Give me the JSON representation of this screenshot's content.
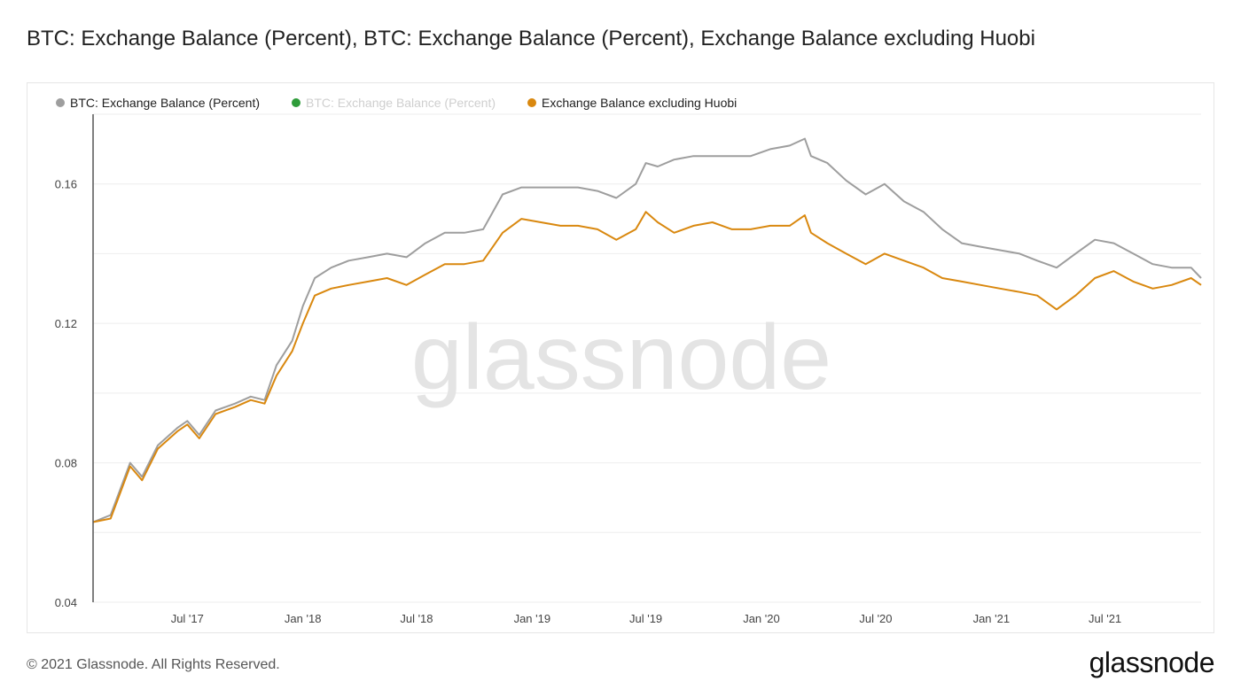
{
  "title": "BTC: Exchange Balance (Percent), BTC: Exchange Balance (Percent), Exchange Balance excluding Huobi",
  "footer": {
    "copyright": "© 2021 Glassnode. All Rights Reserved.",
    "logo": "glassnode"
  },
  "watermark": "glassnode",
  "colors": {
    "grey_series": "#9e9e9e",
    "green_series": "#2e9c3a",
    "orange_series": "#d9880f",
    "grid": "#eeeeee",
    "axis": "#555555"
  },
  "legend": [
    {
      "label": "BTC: Exchange Balance (Percent)",
      "color": "#9e9e9e",
      "hidden": false
    },
    {
      "label": "BTC: Exchange Balance (Percent)",
      "color": "#2e9c3a",
      "hidden": true
    },
    {
      "label": "Exchange Balance excluding Huobi",
      "color": "#d9880f",
      "hidden": false
    }
  ],
  "chart_data": {
    "type": "line",
    "title": "BTC: Exchange Balance (Percent), BTC: Exchange Balance (Percent), Exchange Balance excluding Huobi",
    "xlabel": "",
    "ylabel": "",
    "x_ticks": [
      "Jul '17",
      "Jan '18",
      "Jul '18",
      "Jan '19",
      "Jul '19",
      "Jan '20",
      "Jul '20",
      "Jan '21",
      "Jul '21"
    ],
    "y_ticks": [
      "0.04",
      "0.08",
      "0.12",
      "0.16"
    ],
    "ylim": [
      0.04,
      0.18
    ],
    "xlim": [
      "2017-02-01",
      "2021-12-01"
    ],
    "grid": true,
    "legend_position": "top-left",
    "series": [
      {
        "name": "BTC: Exchange Balance (Percent)",
        "color": "#9e9e9e",
        "points": [
          [
            "2017-02-01",
            0.063
          ],
          [
            "2017-03-01",
            0.065
          ],
          [
            "2017-04-01",
            0.08
          ],
          [
            "2017-04-20",
            0.076
          ],
          [
            "2017-05-15",
            0.085
          ],
          [
            "2017-06-15",
            0.09
          ],
          [
            "2017-07-01",
            0.092
          ],
          [
            "2017-07-20",
            0.088
          ],
          [
            "2017-08-15",
            0.095
          ],
          [
            "2017-09-15",
            0.097
          ],
          [
            "2017-10-10",
            0.099
          ],
          [
            "2017-11-01",
            0.098
          ],
          [
            "2017-11-20",
            0.108
          ],
          [
            "2017-12-15",
            0.115
          ],
          [
            "2018-01-01",
            0.125
          ],
          [
            "2018-01-20",
            0.133
          ],
          [
            "2018-02-15",
            0.136
          ],
          [
            "2018-03-15",
            0.138
          ],
          [
            "2018-04-15",
            0.139
          ],
          [
            "2018-05-15",
            0.14
          ],
          [
            "2018-06-15",
            0.139
          ],
          [
            "2018-07-15",
            0.143
          ],
          [
            "2018-08-15",
            0.146
          ],
          [
            "2018-09-15",
            0.146
          ],
          [
            "2018-10-15",
            0.147
          ],
          [
            "2018-11-15",
            0.157
          ],
          [
            "2018-12-15",
            0.159
          ],
          [
            "2019-01-15",
            0.159
          ],
          [
            "2019-02-15",
            0.159
          ],
          [
            "2019-03-15",
            0.159
          ],
          [
            "2019-04-15",
            0.158
          ],
          [
            "2019-05-15",
            0.156
          ],
          [
            "2019-06-15",
            0.16
          ],
          [
            "2019-07-01",
            0.166
          ],
          [
            "2019-07-20",
            0.165
          ],
          [
            "2019-08-15",
            0.167
          ],
          [
            "2019-09-15",
            0.168
          ],
          [
            "2019-10-15",
            0.168
          ],
          [
            "2019-11-15",
            0.168
          ],
          [
            "2019-12-15",
            0.168
          ],
          [
            "2020-01-15",
            0.17
          ],
          [
            "2020-02-15",
            0.171
          ],
          [
            "2020-03-10",
            0.173
          ],
          [
            "2020-03-20",
            0.168
          ],
          [
            "2020-04-15",
            0.166
          ],
          [
            "2020-05-15",
            0.161
          ],
          [
            "2020-06-15",
            0.157
          ],
          [
            "2020-07-15",
            0.16
          ],
          [
            "2020-08-15",
            0.155
          ],
          [
            "2020-09-15",
            0.152
          ],
          [
            "2020-10-15",
            0.147
          ],
          [
            "2020-11-15",
            0.143
          ],
          [
            "2020-12-15",
            0.142
          ],
          [
            "2021-01-15",
            0.141
          ],
          [
            "2021-02-15",
            0.14
          ],
          [
            "2021-03-15",
            0.138
          ],
          [
            "2021-04-15",
            0.136
          ],
          [
            "2021-05-15",
            0.14
          ],
          [
            "2021-06-15",
            0.144
          ],
          [
            "2021-07-15",
            0.143
          ],
          [
            "2021-08-15",
            0.14
          ],
          [
            "2021-09-15",
            0.137
          ],
          [
            "2021-10-15",
            0.136
          ],
          [
            "2021-11-15",
            0.136
          ],
          [
            "2021-12-01",
            0.133
          ]
        ]
      },
      {
        "name": "Exchange Balance excluding Huobi",
        "color": "#d9880f",
        "points": [
          [
            "2017-02-01",
            0.063
          ],
          [
            "2017-03-01",
            0.064
          ],
          [
            "2017-04-01",
            0.079
          ],
          [
            "2017-04-20",
            0.075
          ],
          [
            "2017-05-15",
            0.084
          ],
          [
            "2017-06-15",
            0.089
          ],
          [
            "2017-07-01",
            0.091
          ],
          [
            "2017-07-20",
            0.087
          ],
          [
            "2017-08-15",
            0.094
          ],
          [
            "2017-09-15",
            0.096
          ],
          [
            "2017-10-10",
            0.098
          ],
          [
            "2017-11-01",
            0.097
          ],
          [
            "2017-11-20",
            0.105
          ],
          [
            "2017-12-15",
            0.112
          ],
          [
            "2018-01-01",
            0.12
          ],
          [
            "2018-01-20",
            0.128
          ],
          [
            "2018-02-15",
            0.13
          ],
          [
            "2018-03-15",
            0.131
          ],
          [
            "2018-04-15",
            0.132
          ],
          [
            "2018-05-15",
            0.133
          ],
          [
            "2018-06-15",
            0.131
          ],
          [
            "2018-07-15",
            0.134
          ],
          [
            "2018-08-15",
            0.137
          ],
          [
            "2018-09-15",
            0.137
          ],
          [
            "2018-10-15",
            0.138
          ],
          [
            "2018-11-15",
            0.146
          ],
          [
            "2018-12-15",
            0.15
          ],
          [
            "2019-01-15",
            0.149
          ],
          [
            "2019-02-15",
            0.148
          ],
          [
            "2019-03-15",
            0.148
          ],
          [
            "2019-04-15",
            0.147
          ],
          [
            "2019-05-15",
            0.144
          ],
          [
            "2019-06-15",
            0.147
          ],
          [
            "2019-07-01",
            0.152
          ],
          [
            "2019-07-20",
            0.149
          ],
          [
            "2019-08-15",
            0.146
          ],
          [
            "2019-09-15",
            0.148
          ],
          [
            "2019-10-15",
            0.149
          ],
          [
            "2019-11-15",
            0.147
          ],
          [
            "2019-12-15",
            0.147
          ],
          [
            "2020-01-15",
            0.148
          ],
          [
            "2020-02-15",
            0.148
          ],
          [
            "2020-03-10",
            0.151
          ],
          [
            "2020-03-20",
            0.146
          ],
          [
            "2020-04-15",
            0.143
          ],
          [
            "2020-05-15",
            0.14
          ],
          [
            "2020-06-15",
            0.137
          ],
          [
            "2020-07-15",
            0.14
          ],
          [
            "2020-08-15",
            0.138
          ],
          [
            "2020-09-15",
            0.136
          ],
          [
            "2020-10-15",
            0.133
          ],
          [
            "2020-11-15",
            0.132
          ],
          [
            "2020-12-15",
            0.131
          ],
          [
            "2021-01-15",
            0.13
          ],
          [
            "2021-02-15",
            0.129
          ],
          [
            "2021-03-15",
            0.128
          ],
          [
            "2021-04-15",
            0.124
          ],
          [
            "2021-05-15",
            0.128
          ],
          [
            "2021-06-15",
            0.133
          ],
          [
            "2021-07-15",
            0.135
          ],
          [
            "2021-08-15",
            0.132
          ],
          [
            "2021-09-15",
            0.13
          ],
          [
            "2021-10-15",
            0.131
          ],
          [
            "2021-11-15",
            0.133
          ],
          [
            "2021-12-01",
            0.131
          ]
        ]
      }
    ]
  }
}
